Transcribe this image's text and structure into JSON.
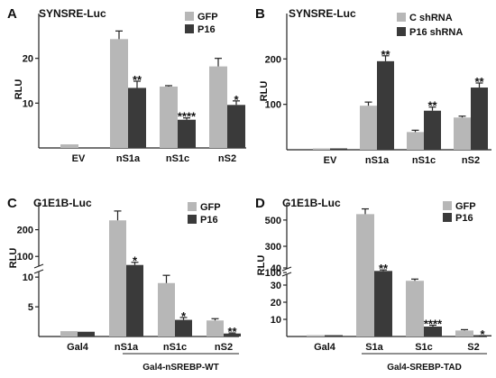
{
  "colors": {
    "light": "#b7b7b7",
    "dark": "#3a3a3a",
    "axis": "#222222"
  },
  "chart_data": [
    {
      "type": "bar",
      "panel": "A",
      "title": "SYNSRE-Luc",
      "ylabel": "RLU",
      "categories": [
        "EV",
        "nS1a",
        "nS1c",
        "nS2"
      ],
      "ylim": [
        0,
        30
      ],
      "yticks": [
        10,
        20
      ],
      "series": [
        {
          "name": "GFP",
          "values": [
            0.8,
            24.3,
            13.7,
            18.2
          ],
          "errors": [
            0,
            1.8,
            0.2,
            1.8
          ]
        },
        {
          "name": "P16",
          "values": [
            null,
            13.4,
            6.3,
            9.6
          ],
          "errors": [
            0,
            1.5,
            0.4,
            0.9
          ]
        }
      ],
      "significance": [
        "",
        "**",
        "****",
        "*"
      ]
    },
    {
      "type": "bar",
      "panel": "B",
      "title": "SYNSRE-Luc",
      "ylabel": "RLU",
      "categories": [
        "EV",
        "nS1a",
        "nS1c",
        "nS2"
      ],
      "ylim": [
        0,
        300
      ],
      "yticks": [
        100,
        200
      ],
      "series": [
        {
          "name": "C shRNA",
          "values": [
            1,
            97,
            39,
            71
          ],
          "errors": [
            0,
            8,
            4,
            3
          ]
        },
        {
          "name": "P16  shRNA",
          "values": [
            1,
            195,
            86,
            137
          ],
          "errors": [
            0,
            12,
            8,
            10
          ]
        }
      ],
      "significance": [
        "",
        "**",
        "**",
        "**"
      ]
    },
    {
      "type": "bar",
      "panel": "C",
      "title": "G1E1B-Luc",
      "ylabel": "RLU",
      "categories": [
        "Gal4",
        "nS1a",
        "nS1c",
        "nS2"
      ],
      "group_label": "Gal4-nSREBP-WT",
      "broken_axis": {
        "lower": [
          0,
          12
        ],
        "upper": [
          40,
          300
        ]
      },
      "yticks": [
        5,
        10,
        100,
        200
      ],
      "series": [
        {
          "name": "GFP",
          "values": [
            0.9,
            235,
            9.0,
            2.7
          ],
          "errors": [
            0,
            35,
            1.3,
            0.3
          ]
        },
        {
          "name": "P16",
          "values": [
            0.8,
            68,
            2.8,
            0.5
          ],
          "errors": [
            0,
            10,
            0.4,
            0.1
          ]
        }
      ],
      "significance": [
        "",
        "*",
        "*",
        "**"
      ]
    },
    {
      "type": "bar",
      "panel": "D",
      "title": "G1E1B-Luc",
      "ylabel": "RLU",
      "categories": [
        "Gal4",
        "S1a",
        "S1c",
        "S2"
      ],
      "group_label": "Gal4-SREBP-TAD",
      "broken_axis": {
        "lower": [
          0,
          40
        ],
        "upper": [
          80,
          630
        ]
      },
      "yticks": [
        10,
        20,
        30,
        40,
        100,
        300,
        500
      ],
      "series": [
        {
          "name": "GFP",
          "values": [
            0.3,
            545,
            32.5,
            3.5
          ],
          "errors": [
            0,
            40,
            1.0,
            0.5
          ]
        },
        {
          "name": "P16",
          "values": [
            0.3,
            112,
            5.8,
            0.3
          ],
          "errors": [
            0,
            8,
            0.8,
            0.1
          ]
        }
      ],
      "significance": [
        "",
        "**",
        "****",
        "*"
      ]
    }
  ]
}
